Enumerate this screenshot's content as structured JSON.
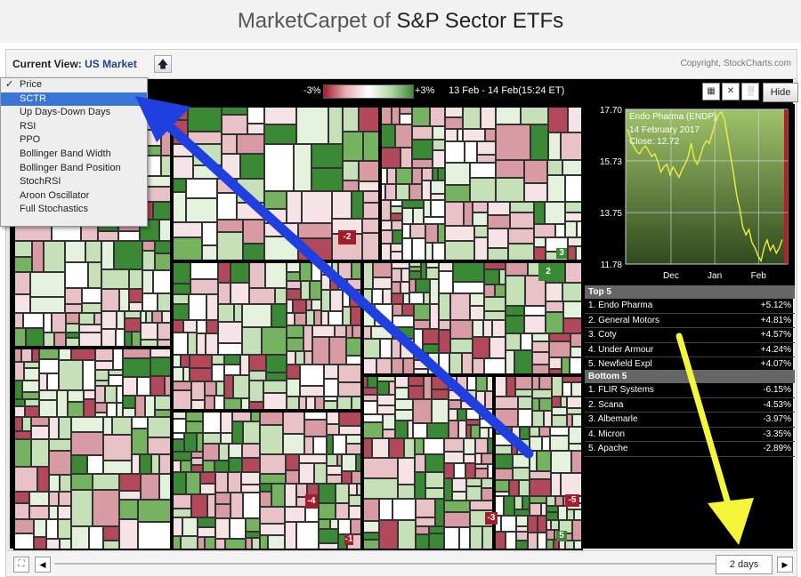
{
  "page": {
    "title_prefix": "MarketCarpet of ",
    "title_strong": "S&P Sector ETFs"
  },
  "viewbar": {
    "current_view_label": "Current View:",
    "current_view_value": "US Market",
    "up_icon": "up-arrow-icon",
    "copyright": "Copyright, StockCharts.com"
  },
  "legend": {
    "min_label": "-3%",
    "max_label": "+3%",
    "date_range": "13 Feb - 14 Feb(15:24 ET)"
  },
  "dropdown": {
    "check_mark": "✓",
    "items": [
      "Price",
      "SCTR",
      "Up Days-Down Days",
      "RSI",
      "PPO",
      "Bollinger Band Width",
      "Bollinger Band Position",
      "StochRSI",
      "Aroon Oscillator",
      "Full Stochastics"
    ],
    "checked_index": 0,
    "highlighted_index": 1
  },
  "toolbar": {
    "hide_label": "Hide",
    "tools": [
      "grid-off-icon",
      "crossed-chart-icon",
      "bar-chart-icon"
    ]
  },
  "treemap": {
    "labels": {
      "a": "-2",
      "b": "2",
      "c": "3",
      "d": "-4",
      "e": "-3",
      "f": "-5",
      "g": "5",
      "h": "-1"
    }
  },
  "chart_data": {
    "type": "line",
    "title": "Endo Pharma (ENDP)",
    "annotation_date": "14  February 2017",
    "annotation_close": "Close: 12.72",
    "y_ticks": [
      "17.70",
      "15.73",
      "13.75",
      "11.78"
    ],
    "ylim": [
      11.78,
      17.7
    ],
    "x_ticks": [
      "Dec",
      "Jan",
      "Feb"
    ],
    "series": [
      {
        "values": [
          16.95,
          16.6,
          16.3,
          16.1,
          16.0,
          16.2,
          16.3,
          16.1,
          15.9,
          16.0,
          15.7,
          15.3,
          15.5,
          15.6,
          15.2,
          15.5,
          15.3,
          15.1,
          15.4,
          15.6,
          15.9,
          16.4,
          15.8,
          15.6,
          15.9,
          16.3,
          16.5,
          16.4,
          16.8,
          17.2,
          17.5,
          17.6,
          17.3,
          16.6,
          15.9,
          15.2,
          14.4,
          13.9,
          13.2,
          12.9,
          13.1,
          12.6,
          12.4,
          12.1,
          11.9,
          12.4,
          12.7,
          12.3,
          12.5,
          12.2,
          12.4,
          12.72
        ]
      }
    ]
  },
  "top5": {
    "heading": "Top 5",
    "rows": [
      {
        "name": "1. Endo Pharma",
        "change": "+5.12%"
      },
      {
        "name": "2. General Motors",
        "change": "+4.81%"
      },
      {
        "name": "3. Coty",
        "change": "+4.57%"
      },
      {
        "name": "4. Under Armour",
        "change": "+4.24%"
      },
      {
        "name": "5. Newfield Expl",
        "change": "+4.07%"
      }
    ]
  },
  "bottom5": {
    "heading": "Bottom 5",
    "rows": [
      {
        "name": "1. FLIR Systems",
        "change": "-6.15%"
      },
      {
        "name": "2. Scana",
        "change": "-4.53%"
      },
      {
        "name": "3. Albemarle",
        "change": "-3.97%"
      },
      {
        "name": "4. Micron",
        "change": "-3.35%"
      },
      {
        "name": "5. Apache",
        "change": "-2.89%"
      }
    ]
  },
  "bottombar": {
    "expand_icon": "expand-icon",
    "prev_glyph": "◀",
    "next_glyph": "▶",
    "period_label": "2 days"
  },
  "annotations": {
    "blue_arrow_color": "#1f3fe0",
    "yellow_arrow_color": "#f5f53a"
  }
}
